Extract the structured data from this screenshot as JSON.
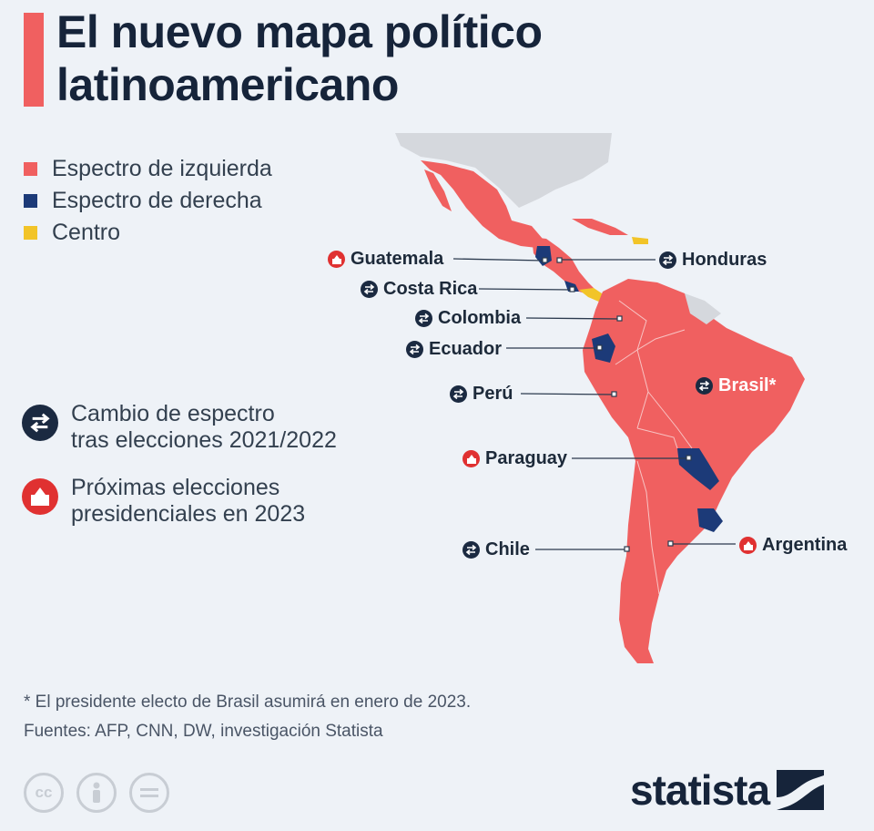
{
  "title": {
    "line1": "El nuevo mapa político",
    "line2": "latinoamericano"
  },
  "colors": {
    "left": "#f06060",
    "right": "#1c3a78",
    "center": "#f2c428",
    "other": "#d5d8dd",
    "accent": "#f06060",
    "icon_change": "#1b2a41",
    "icon_vote": "#e03131"
  },
  "legend": [
    {
      "label": "Espectro de izquierda",
      "color": "#f06060"
    },
    {
      "label": "Espectro de derecha",
      "color": "#1c3a78"
    },
    {
      "label": "Centro",
      "color": "#f2c428"
    }
  ],
  "countries": {
    "guatemala": {
      "label": "Guatemala",
      "icon": "ballot-icon"
    },
    "honduras": {
      "label": "Honduras",
      "icon": "swap-icon"
    },
    "costa_rica": {
      "label": "Costa Rica",
      "icon": "swap-icon"
    },
    "colombia": {
      "label": "Colombia",
      "icon": "swap-icon"
    },
    "ecuador": {
      "label": "Ecuador",
      "icon": "swap-icon"
    },
    "peru": {
      "label": "Perú",
      "icon": "swap-icon"
    },
    "brasil": {
      "label": "Brasil*",
      "icon": "swap-icon"
    },
    "paraguay": {
      "label": "Paraguay",
      "icon": "ballot-icon"
    },
    "chile": {
      "label": "Chile",
      "icon": "swap-icon"
    },
    "argentina": {
      "label": "Argentina",
      "icon": "ballot-icon"
    }
  },
  "key": {
    "change": {
      "line1": "Cambio de espectro",
      "line2": "tras elecciones 2021/2022",
      "icon": "swap-icon"
    },
    "vote": {
      "line1": "Próximas elecciones",
      "line2": "presidenciales en 2023",
      "icon": "ballot-icon"
    }
  },
  "footnote": "* El presidente electo de Brasil asumirá en enero de 2023.",
  "sources": "Fuentes: AFP, CNN, DW, investigación Statista",
  "license_icons": [
    "cc-icon",
    "attribution-icon",
    "no-derivatives-icon"
  ],
  "brand": "statista"
}
